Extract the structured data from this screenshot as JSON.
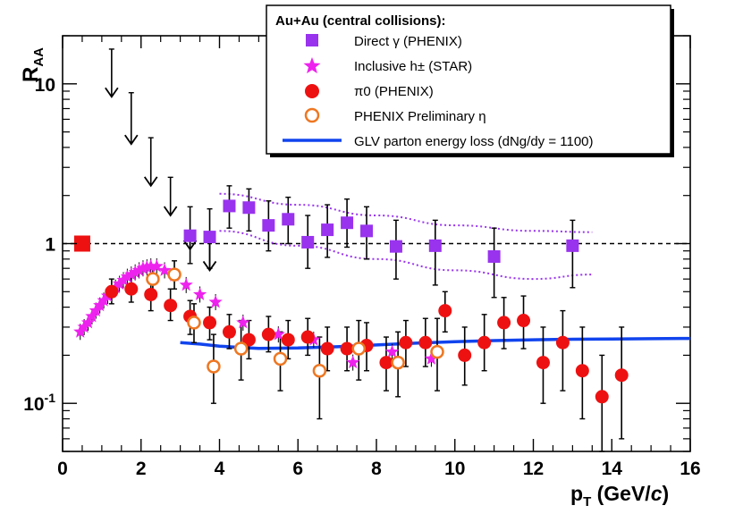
{
  "chart_data": {
    "type": "scatter",
    "title": "",
    "xlabel": "p_T (GeV/c)",
    "xlabel_parts": {
      "p": "p",
      "sub": "T",
      "rest": " (GeV/",
      "italic": "c",
      "close": ")"
    },
    "ylabel": "R_AA",
    "ylabel_parts": {
      "main": "R",
      "sub": "AA"
    },
    "xlim": [
      0,
      16
    ],
    "ylim": [
      0.05,
      20
    ],
    "yscale": "log",
    "x_ticks": [
      {
        "value": 0,
        "label": "0"
      },
      {
        "value": 2,
        "label": "2"
      },
      {
        "value": 4,
        "label": "4"
      },
      {
        "value": 6,
        "label": "6"
      },
      {
        "value": 8,
        "label": "8"
      },
      {
        "value": 10,
        "label": "10"
      },
      {
        "value": 12,
        "label": "12"
      },
      {
        "value": 14,
        "label": "14"
      },
      {
        "value": 16,
        "label": "16"
      }
    ],
    "y_ticks": [
      {
        "value": 0.1,
        "label_base": "10",
        "label_exp": "-1"
      },
      {
        "value": 1,
        "label_base": "1",
        "label_exp": ""
      },
      {
        "value": 10,
        "label_base": "10",
        "label_exp": ""
      }
    ],
    "reference_line": {
      "y": 1,
      "style": "dashed"
    },
    "normalization_box": {
      "x": 0.5,
      "y": 1.0,
      "color": "#ee1111"
    },
    "legend": {
      "title": "Au+Au (central collisions):",
      "position": "top-right",
      "entries": [
        {
          "id": "direct",
          "label": "Direct γ (PHENIX)",
          "marker": "square",
          "color": "#9933ee"
        },
        {
          "id": "hpm",
          "label": "Inclusive h± (STAR)",
          "marker": "star",
          "color": "#ee22ee"
        },
        {
          "id": "pi0",
          "label": "π0 (PHENIX)",
          "marker": "circle",
          "color": "#ee1111"
        },
        {
          "id": "eta",
          "label": "PHENIX Preliminary η",
          "marker": "open-circle",
          "color": "#ee7722"
        },
        {
          "id": "glv",
          "label": "GLV parton energy loss (dNg/dy = 1100)",
          "marker": "line",
          "color": "#1144ee"
        }
      ]
    },
    "series": [
      {
        "name": "Direct γ (PHENIX)",
        "marker": "square",
        "color": "#9933ee",
        "points": [
          {
            "x": 4.25,
            "y": 1.72,
            "lo": 1.25,
            "hi": 2.3
          },
          {
            "x": 4.75,
            "y": 1.68,
            "lo": 1.2,
            "hi": 2.2
          },
          {
            "x": 5.25,
            "y": 1.3,
            "lo": 0.9,
            "hi": 1.85
          },
          {
            "x": 5.75,
            "y": 1.42,
            "lo": 1.0,
            "hi": 1.95
          },
          {
            "x": 6.25,
            "y": 1.02,
            "lo": 0.7,
            "hi": 1.5
          },
          {
            "x": 6.75,
            "y": 1.22,
            "lo": 0.82,
            "hi": 1.75
          },
          {
            "x": 7.25,
            "y": 1.35,
            "lo": 0.95,
            "hi": 1.9
          },
          {
            "x": 7.75,
            "y": 1.2,
            "lo": 0.8,
            "hi": 1.7
          },
          {
            "x": 8.5,
            "y": 0.96,
            "lo": 0.6,
            "hi": 1.4
          },
          {
            "x": 9.5,
            "y": 0.97,
            "lo": 0.55,
            "hi": 1.4
          },
          {
            "x": 11.0,
            "y": 0.83,
            "lo": 0.46,
            "hi": 1.25
          },
          {
            "x": 13.0,
            "y": 0.97,
            "lo": 0.53,
            "hi": 1.4
          },
          {
            "x": 3.25,
            "y": 1.12,
            "lo": 0.75,
            "hi": 1.7
          },
          {
            "x": 3.75,
            "y": 1.1,
            "lo": 0.7,
            "hi": 1.65
          }
        ],
        "upper_limits": [
          {
            "x": 1.25,
            "y": 8.3,
            "top": 16.5
          },
          {
            "x": 1.75,
            "y": 4.2,
            "top": 8.8
          },
          {
            "x": 2.25,
            "y": 2.3,
            "top": 4.6
          },
          {
            "x": 2.75,
            "y": 1.5,
            "top": 2.6
          },
          {
            "x": 3.25,
            "y": 0.92,
            "top": 1.12
          },
          {
            "x": 3.75,
            "y": 0.68,
            "top": 1.1
          }
        ],
        "band_upper": [
          [
            4.0,
            2.05
          ],
          [
            6.0,
            1.75
          ],
          [
            8.0,
            1.5
          ],
          [
            10.0,
            1.3
          ],
          [
            12.0,
            1.2
          ],
          [
            13.5,
            1.18
          ]
        ],
        "band_lower": [
          [
            4.0,
            1.2
          ],
          [
            6.0,
            0.97
          ],
          [
            8.0,
            0.8
          ],
          [
            10.0,
            0.68
          ],
          [
            12.0,
            0.6
          ],
          [
            13.5,
            0.64
          ]
        ]
      },
      {
        "name": "Inclusive h± (STAR)",
        "marker": "star",
        "color": "#ee22ee",
        "points": [
          {
            "x": 0.45,
            "y": 0.28
          },
          {
            "x": 0.55,
            "y": 0.3
          },
          {
            "x": 0.65,
            "y": 0.32
          },
          {
            "x": 0.75,
            "y": 0.35
          },
          {
            "x": 0.85,
            "y": 0.38
          },
          {
            "x": 0.95,
            "y": 0.41
          },
          {
            "x": 1.05,
            "y": 0.44
          },
          {
            "x": 1.15,
            "y": 0.47
          },
          {
            "x": 1.25,
            "y": 0.5
          },
          {
            "x": 1.35,
            "y": 0.53
          },
          {
            "x": 1.45,
            "y": 0.56
          },
          {
            "x": 1.55,
            "y": 0.59
          },
          {
            "x": 1.65,
            "y": 0.62
          },
          {
            "x": 1.75,
            "y": 0.64
          },
          {
            "x": 1.85,
            "y": 0.66
          },
          {
            "x": 1.95,
            "y": 0.68
          },
          {
            "x": 2.05,
            "y": 0.7
          },
          {
            "x": 2.15,
            "y": 0.71
          },
          {
            "x": 2.25,
            "y": 0.72
          },
          {
            "x": 2.4,
            "y": 0.72
          },
          {
            "x": 2.6,
            "y": 0.68
          },
          {
            "x": 2.85,
            "y": 0.63
          },
          {
            "x": 3.15,
            "y": 0.55
          },
          {
            "x": 3.5,
            "y": 0.48
          },
          {
            "x": 3.9,
            "y": 0.43
          },
          {
            "x": 4.6,
            "y": 0.32
          },
          {
            "x": 5.5,
            "y": 0.27
          },
          {
            "x": 6.4,
            "y": 0.25
          },
          {
            "x": 7.4,
            "y": 0.18
          },
          {
            "x": 8.4,
            "y": 0.21
          },
          {
            "x": 9.4,
            "y": 0.19
          }
        ]
      },
      {
        "name": "π0 (PHENIX)",
        "marker": "circle",
        "color": "#ee1111",
        "points": [
          {
            "x": 1.25,
            "y": 0.5,
            "lo": 0.42,
            "hi": 0.6
          },
          {
            "x": 1.75,
            "y": 0.52,
            "lo": 0.43,
            "hi": 0.63
          },
          {
            "x": 2.25,
            "y": 0.48,
            "lo": 0.38,
            "hi": 0.6
          },
          {
            "x": 2.75,
            "y": 0.41,
            "lo": 0.33,
            "hi": 0.52
          },
          {
            "x": 3.25,
            "y": 0.35,
            "lo": 0.27,
            "hi": 0.44
          },
          {
            "x": 3.75,
            "y": 0.32,
            "lo": 0.25,
            "hi": 0.4
          },
          {
            "x": 4.25,
            "y": 0.28,
            "lo": 0.22,
            "hi": 0.36
          },
          {
            "x": 4.75,
            "y": 0.25,
            "lo": 0.19,
            "hi": 0.33
          },
          {
            "x": 5.25,
            "y": 0.27,
            "lo": 0.21,
            "hi": 0.35
          },
          {
            "x": 5.75,
            "y": 0.25,
            "lo": 0.19,
            "hi": 0.33
          },
          {
            "x": 6.25,
            "y": 0.26,
            "lo": 0.2,
            "hi": 0.34
          },
          {
            "x": 6.75,
            "y": 0.22,
            "lo": 0.16,
            "hi": 0.3
          },
          {
            "x": 7.25,
            "y": 0.22,
            "lo": 0.16,
            "hi": 0.3
          },
          {
            "x": 7.75,
            "y": 0.23,
            "lo": 0.16,
            "hi": 0.32
          },
          {
            "x": 8.25,
            "y": 0.18,
            "lo": 0.12,
            "hi": 0.26
          },
          {
            "x": 8.75,
            "y": 0.24,
            "lo": 0.17,
            "hi": 0.33
          },
          {
            "x": 9.25,
            "y": 0.24,
            "lo": 0.17,
            "hi": 0.34
          },
          {
            "x": 9.75,
            "y": 0.38,
            "lo": 0.28,
            "hi": 0.5
          },
          {
            "x": 10.25,
            "y": 0.2,
            "lo": 0.13,
            "hi": 0.3
          },
          {
            "x": 10.75,
            "y": 0.24,
            "lo": 0.16,
            "hi": 0.36
          },
          {
            "x": 11.25,
            "y": 0.32,
            "lo": 0.22,
            "hi": 0.46
          },
          {
            "x": 11.75,
            "y": 0.33,
            "lo": 0.22,
            "hi": 0.47
          },
          {
            "x": 12.25,
            "y": 0.18,
            "lo": 0.1,
            "hi": 0.3
          },
          {
            "x": 12.75,
            "y": 0.24,
            "lo": 0.12,
            "hi": 0.38
          },
          {
            "x": 13.25,
            "y": 0.16,
            "lo": 0.08,
            "hi": 0.3
          },
          {
            "x": 13.75,
            "y": 0.11,
            "lo": 0.05,
            "hi": 0.2
          },
          {
            "x": 14.25,
            "y": 0.15,
            "lo": 0.06,
            "hi": 0.3
          }
        ]
      },
      {
        "name": "PHENIX Preliminary η",
        "marker": "open-circle",
        "color": "#ee7722",
        "points": [
          {
            "x": 2.3,
            "y": 0.6,
            "lo": 0.5,
            "hi": 0.72
          },
          {
            "x": 2.85,
            "y": 0.64,
            "lo": 0.52,
            "hi": 0.78
          },
          {
            "x": 3.35,
            "y": 0.32,
            "lo": 0.24,
            "hi": 0.42
          },
          {
            "x": 3.85,
            "y": 0.17,
            "lo": 0.1,
            "hi": 0.27
          },
          {
            "x": 4.55,
            "y": 0.22,
            "lo": 0.14,
            "hi": 0.33
          },
          {
            "x": 5.55,
            "y": 0.19,
            "lo": 0.12,
            "hi": 0.28
          },
          {
            "x": 6.55,
            "y": 0.16,
            "lo": 0.08,
            "hi": 0.26
          },
          {
            "x": 7.55,
            "y": 0.22,
            "lo": 0.14,
            "hi": 0.33
          },
          {
            "x": 8.55,
            "y": 0.18,
            "lo": 0.11,
            "hi": 0.28
          },
          {
            "x": 9.55,
            "y": 0.21,
            "lo": 0.12,
            "hi": 0.34
          }
        ]
      },
      {
        "name": "GLV parton energy loss (dNg/dy = 1100)",
        "marker": "line",
        "color": "#1144ee",
        "points": [
          {
            "x": 3.0,
            "y": 0.24
          },
          {
            "x": 3.5,
            "y": 0.235
          },
          {
            "x": 4.0,
            "y": 0.228
          },
          {
            "x": 4.5,
            "y": 0.224
          },
          {
            "x": 5.0,
            "y": 0.221
          },
          {
            "x": 6.0,
            "y": 0.222
          },
          {
            "x": 7.0,
            "y": 0.226
          },
          {
            "x": 8.0,
            "y": 0.232
          },
          {
            "x": 9.0,
            "y": 0.238
          },
          {
            "x": 10.0,
            "y": 0.243
          },
          {
            "x": 11.0,
            "y": 0.247
          },
          {
            "x": 12.0,
            "y": 0.25
          },
          {
            "x": 13.0,
            "y": 0.252
          },
          {
            "x": 14.0,
            "y": 0.253
          },
          {
            "x": 15.0,
            "y": 0.254
          },
          {
            "x": 16.0,
            "y": 0.255
          }
        ]
      }
    ]
  }
}
